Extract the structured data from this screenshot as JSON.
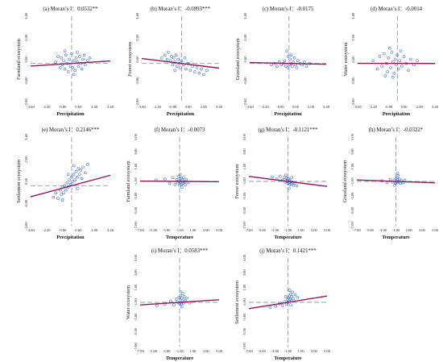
{
  "chart_data": [
    {
      "type": "scatter",
      "title": "(a) Moran’s I：0.0532**",
      "xlabel": "Precipitation",
      "ylabel": "Farmland ecosystem",
      "xlim": [
        -3.6,
        3.4
      ],
      "ylim": [
        -2.8,
        3.4
      ],
      "xticks": [
        "-3.60",
        "-2.20",
        "-0.80",
        "0.60",
        "2.00",
        "3.40"
      ],
      "yticks": [
        "3.40",
        "2.00",
        "0.60",
        "-0.80",
        "-2.80"
      ],
      "slope": 0.0532,
      "points": [
        [
          -1.2,
          0.5
        ],
        [
          -1.0,
          -0.3
        ],
        [
          -0.9,
          0.4
        ],
        [
          -0.8,
          -0.1
        ],
        [
          -0.7,
          0.2
        ],
        [
          -0.6,
          -0.4
        ],
        [
          -0.5,
          0.6
        ],
        [
          -0.4,
          0.0
        ],
        [
          -0.3,
          -0.6
        ],
        [
          -0.2,
          0.3
        ],
        [
          -0.1,
          -0.2
        ],
        [
          0.0,
          0.7
        ],
        [
          0.1,
          -0.3
        ],
        [
          0.2,
          0.2
        ],
        [
          0.3,
          -0.5
        ],
        [
          0.4,
          0.4
        ],
        [
          0.5,
          0.1
        ],
        [
          0.6,
          -0.2
        ],
        [
          0.7,
          0.5
        ],
        [
          0.8,
          0.0
        ],
        [
          0.9,
          -0.4
        ],
        [
          1.0,
          0.3
        ],
        [
          1.1,
          0.6
        ],
        [
          1.2,
          -0.1
        ],
        [
          1.4,
          0.2
        ],
        [
          -0.6,
          0.9
        ],
        [
          0.2,
          -0.8
        ],
        [
          0.5,
          0.8
        ],
        [
          -1.4,
          0.1
        ],
        [
          1.6,
          0.4
        ]
      ]
    },
    {
      "type": "scatter",
      "title": "(b) Moran’s I：-0.0993***",
      "xlabel": "Precipitation",
      "ylabel": "Forest ecosystem",
      "xlim": [
        -3.6,
        3.4
      ],
      "ylim": [
        -2.8,
        3.4
      ],
      "xticks": [
        "-3.60",
        "-2.20",
        "-0.80",
        "0.60",
        "2.00",
        "3.40"
      ],
      "yticks": [
        "3.40",
        "2.00",
        "0.60",
        "-0.80",
        "-2.80"
      ],
      "slope": -0.0993,
      "points": [
        [
          -1.5,
          0.6
        ],
        [
          -1.3,
          0.3
        ],
        [
          -1.2,
          0.8
        ],
        [
          -1.0,
          0.2
        ],
        [
          -0.9,
          0.5
        ],
        [
          -0.8,
          -0.1
        ],
        [
          -0.7,
          0.4
        ],
        [
          -0.6,
          0.1
        ],
        [
          -0.5,
          0.6
        ],
        [
          -0.4,
          -0.2
        ],
        [
          -0.3,
          0.3
        ],
        [
          -0.2,
          0.0
        ],
        [
          -0.1,
          -0.3
        ],
        [
          0.0,
          0.2
        ],
        [
          0.2,
          -0.1
        ],
        [
          0.4,
          -0.4
        ],
        [
          0.6,
          0.0
        ],
        [
          0.8,
          -0.5
        ],
        [
          1.0,
          -0.2
        ],
        [
          1.2,
          -0.6
        ],
        [
          1.4,
          -0.3
        ],
        [
          1.6,
          -0.7
        ],
        [
          1.8,
          -0.4
        ],
        [
          2.0,
          -0.8
        ],
        [
          -0.6,
          -0.5
        ],
        [
          0.3,
          0.4
        ],
        [
          -1.8,
          0.4
        ],
        [
          2.3,
          -0.5
        ]
      ]
    },
    {
      "type": "scatter",
      "title": "(c) Moran’s I：-0.0175",
      "xlabel": "Precipitation",
      "ylabel": "Grassland ecosystem",
      "xlim": [
        -3.6,
        3.4
      ],
      "ylim": [
        -2.8,
        3.4
      ],
      "xticks": [
        "-3.60",
        "-2.20",
        "-0.80",
        "0.60",
        "2.00",
        "3.40"
      ],
      "yticks": [
        "3.40",
        "2.00",
        "0.60",
        "-0.80",
        "-2.80"
      ],
      "slope": -0.0175,
      "points": [
        [
          -1.6,
          -0.1
        ],
        [
          -1.3,
          0.0
        ],
        [
          -1.1,
          -0.2
        ],
        [
          -0.9,
          0.1
        ],
        [
          -0.7,
          -0.1
        ],
        [
          -0.5,
          0.0
        ],
        [
          -0.4,
          0.2
        ],
        [
          -0.3,
          -0.2
        ],
        [
          -0.2,
          0.9
        ],
        [
          -0.1,
          0.5
        ],
        [
          0.0,
          -0.1
        ],
        [
          0.1,
          0.3
        ],
        [
          0.2,
          0.0
        ],
        [
          0.3,
          -0.2
        ],
        [
          0.4,
          0.1
        ],
        [
          0.6,
          -0.1
        ],
        [
          0.8,
          0.2
        ],
        [
          1.0,
          0.0
        ],
        [
          1.2,
          -0.1
        ],
        [
          1.4,
          0.1
        ],
        [
          1.6,
          -0.2
        ],
        [
          1.9,
          0.0
        ],
        [
          0.2,
          0.6
        ],
        [
          0.5,
          0.4
        ],
        [
          -0.1,
          -0.3
        ],
        [
          0.7,
          -0.3
        ]
      ]
    },
    {
      "type": "scatter",
      "title": "(d) Moran’s I：-0.0014",
      "xlabel": "Precipitation",
      "ylabel": "Water ecosystem",
      "xlim": [
        -3.6,
        3.4
      ],
      "ylim": [
        -2.8,
        3.4
      ],
      "xticks": [
        "-3.60",
        "-2.20",
        "-0.80",
        "0.60",
        "2.00",
        "3.40"
      ],
      "yticks": [
        "3.40",
        "2.00",
        "0.60",
        "-0.80",
        "-2.80"
      ],
      "slope": -0.0014,
      "points": [
        [
          -2.2,
          0.2
        ],
        [
          -1.8,
          -0.4
        ],
        [
          -1.6,
          0.5
        ],
        [
          -1.4,
          -0.2
        ],
        [
          -1.2,
          0.7
        ],
        [
          -1.0,
          0.0
        ],
        [
          -0.9,
          -0.6
        ],
        [
          -0.8,
          0.4
        ],
        [
          -0.6,
          -0.3
        ],
        [
          -0.5,
          0.8
        ],
        [
          -0.4,
          0.1
        ],
        [
          -0.3,
          -0.7
        ],
        [
          -0.2,
          0.3
        ],
        [
          -0.1,
          -0.1
        ],
        [
          0.0,
          0.6
        ],
        [
          0.1,
          -0.4
        ],
        [
          0.2,
          0.2
        ],
        [
          0.4,
          -0.2
        ],
        [
          0.6,
          0.5
        ],
        [
          0.8,
          0.0
        ],
        [
          1.0,
          -0.5
        ],
        [
          1.2,
          0.3
        ],
        [
          1.5,
          -0.1
        ],
        [
          1.8,
          0.2
        ],
        [
          -0.7,
          1.1
        ],
        [
          -1.1,
          -0.9
        ],
        [
          0.3,
          0.9
        ],
        [
          -0.4,
          -1.0
        ]
      ]
    },
    {
      "type": "scatter",
      "title": "(e) Moran’s I：0.2146***",
      "xlabel": "Precipitation",
      "ylabel": "Settlement ecosystem",
      "xlim": [
        -3.6,
        3.4
      ],
      "ylim": [
        -2.8,
        3.4
      ],
      "xticks": [
        "-3.60",
        "-2.20",
        "-0.80",
        "0.60",
        "2.00",
        "3.40"
      ],
      "yticks": [
        "3.40",
        "2.00",
        "0.60",
        "-0.80",
        "-2.80"
      ],
      "slope": 0.2146,
      "points": [
        [
          -1.6,
          -0.8
        ],
        [
          -1.4,
          -0.5
        ],
        [
          -1.2,
          -0.9
        ],
        [
          -1.0,
          -0.3
        ],
        [
          -0.9,
          -0.6
        ],
        [
          -0.8,
          -0.1
        ],
        [
          -0.7,
          -0.5
        ],
        [
          -0.6,
          0.0
        ],
        [
          -0.5,
          -0.3
        ],
        [
          -0.4,
          0.2
        ],
        [
          -0.3,
          -0.1
        ],
        [
          -0.2,
          0.4
        ],
        [
          -0.1,
          0.1
        ],
        [
          0.0,
          0.6
        ],
        [
          0.1,
          0.3
        ],
        [
          0.2,
          0.8
        ],
        [
          0.3,
          0.4
        ],
        [
          0.4,
          1.0
        ],
        [
          0.5,
          0.6
        ],
        [
          0.6,
          1.2
        ],
        [
          0.7,
          0.8
        ],
        [
          0.8,
          1.1
        ],
        [
          0.9,
          0.5
        ],
        [
          1.0,
          1.3
        ],
        [
          1.2,
          0.9
        ],
        [
          1.4,
          1.5
        ],
        [
          -0.3,
          0.8
        ],
        [
          0.5,
          -0.2
        ],
        [
          -0.8,
          -1.0
        ],
        [
          0.2,
          1.4
        ]
      ]
    },
    {
      "type": "scatter",
      "title": "(f) Moran’s I：-0.0073",
      "xlabel": "Temperature",
      "ylabel": "Farmland ecosystem",
      "xlim": [
        -7.0,
        7.0
      ],
      "ylim": [
        -7.0,
        7.0
      ],
      "xticks": [
        "-7.00",
        "-5.00",
        "-3.00",
        "-1.00",
        "1.00",
        "3.00",
        "5.00"
      ],
      "yticks": [
        "5.00",
        "3.00",
        "1.00",
        "-1.00",
        "-3.00",
        "-5.00",
        "-7.00"
      ],
      "slope": -0.0073,
      "points": [
        [
          -2.6,
          0.4
        ],
        [
          -1.8,
          -0.3
        ],
        [
          -1.2,
          0.6
        ],
        [
          -0.8,
          -0.5
        ],
        [
          -0.5,
          0.3
        ],
        [
          -0.3,
          -0.2
        ],
        [
          -0.2,
          0.8
        ],
        [
          -0.1,
          0.0
        ],
        [
          0.0,
          -0.6
        ],
        [
          0.1,
          0.4
        ],
        [
          0.2,
          -0.1
        ],
        [
          0.3,
          0.5
        ],
        [
          0.4,
          -0.4
        ],
        [
          0.5,
          0.2
        ],
        [
          0.6,
          -0.3
        ],
        [
          0.7,
          0.6
        ],
        [
          0.8,
          0.0
        ],
        [
          1.0,
          -0.5
        ],
        [
          1.2,
          0.3
        ],
        [
          1.5,
          -0.2
        ],
        [
          -4.2,
          0.2
        ],
        [
          0.1,
          1.1
        ],
        [
          0.4,
          -0.9
        ]
      ]
    },
    {
      "type": "scatter",
      "title": "(g) Moran’s I：-0.1121***",
      "xlabel": "Temperature",
      "ylabel": "Forest ecosystem",
      "xlim": [
        -7.0,
        7.0
      ],
      "ylim": [
        -7.0,
        7.0
      ],
      "xticks": [
        "-7.00",
        "-5.00",
        "-3.00",
        "-1.00",
        "1.00",
        "3.00",
        "5.00"
      ],
      "yticks": [
        "5.00",
        "3.00",
        "1.00",
        "-1.00",
        "-3.00",
        "-5.00",
        "-7.00"
      ],
      "slope": -0.1121,
      "points": [
        [
          -2.8,
          0.7
        ],
        [
          -2.0,
          0.4
        ],
        [
          -1.4,
          0.8
        ],
        [
          -1.0,
          0.2
        ],
        [
          -0.7,
          0.6
        ],
        [
          -0.5,
          -0.1
        ],
        [
          -0.3,
          0.5
        ],
        [
          -0.2,
          0.0
        ],
        [
          -0.1,
          0.3
        ],
        [
          0.0,
          -0.3
        ],
        [
          0.1,
          0.4
        ],
        [
          0.2,
          -0.2
        ],
        [
          0.3,
          0.2
        ],
        [
          0.4,
          -0.5
        ],
        [
          0.5,
          0.0
        ],
        [
          0.6,
          -0.4
        ],
        [
          0.8,
          -0.1
        ],
        [
          1.0,
          -0.6
        ],
        [
          1.2,
          -0.3
        ],
        [
          1.6,
          -0.7
        ],
        [
          0.2,
          -1.1
        ],
        [
          -0.4,
          1.0
        ],
        [
          0.7,
          0.6
        ]
      ]
    },
    {
      "type": "scatter",
      "title": "(h) Moran’s I：-0.0322*",
      "xlabel": "Temperature",
      "ylabel": "Grassland ecosystem",
      "xlim": [
        -7.0,
        7.0
      ],
      "ylim": [
        -7.0,
        7.0
      ],
      "xticks": [
        "-7.00",
        "-5.00",
        "-3.00",
        "-1.00",
        "1.00",
        "3.00",
        "5.00"
      ],
      "yticks": [
        "5.00",
        "3.00",
        "1.00",
        "-1.00",
        "-3.00",
        "-5.00",
        "-7.00"
      ],
      "slope": -0.0322,
      "points": [
        [
          -2.5,
          0.1
        ],
        [
          -1.6,
          -0.2
        ],
        [
          -1.0,
          0.3
        ],
        [
          -0.6,
          -0.1
        ],
        [
          -0.3,
          0.2
        ],
        [
          -0.1,
          -0.3
        ],
        [
          0.0,
          0.5
        ],
        [
          0.1,
          0.0
        ],
        [
          0.2,
          -0.2
        ],
        [
          0.3,
          0.3
        ],
        [
          0.4,
          0.9
        ],
        [
          0.5,
          -0.1
        ],
        [
          0.6,
          0.4
        ],
        [
          0.8,
          -0.3
        ],
        [
          1.0,
          0.1
        ],
        [
          1.3,
          -0.2
        ],
        [
          0.3,
          1.3
        ],
        [
          -0.2,
          -0.6
        ],
        [
          1.6,
          0.2
        ]
      ]
    },
    {
      "type": "scatter",
      "title": "(i) Moran’s I：0.0583***",
      "xlabel": "Temperature",
      "ylabel": "Water ecosystem",
      "xlim": [
        -7.0,
        7.0
      ],
      "ylim": [
        -7.0,
        7.0
      ],
      "xticks": [
        "-7.00",
        "-5.00",
        "-3.00",
        "-1.00",
        "1.00",
        "3.00",
        "5.00"
      ],
      "yticks": [
        "5.00",
        "3.00",
        "1.00",
        "-1.00",
        "-3.00",
        "-5.00",
        "-7.00"
      ],
      "slope": 0.0583,
      "points": [
        [
          -4.0,
          -0.5
        ],
        [
          -2.6,
          -0.3
        ],
        [
          -1.6,
          0.2
        ],
        [
          -1.0,
          -0.4
        ],
        [
          -0.6,
          0.5
        ],
        [
          -0.3,
          0.0
        ],
        [
          -0.1,
          0.8
        ],
        [
          0.0,
          -0.2
        ],
        [
          0.1,
          0.4
        ],
        [
          0.2,
          1.1
        ],
        [
          0.3,
          -0.3
        ],
        [
          0.4,
          0.6
        ],
        [
          0.5,
          0.1
        ],
        [
          0.6,
          1.4
        ],
        [
          0.7,
          -0.1
        ],
        [
          0.8,
          0.9
        ],
        [
          1.0,
          0.3
        ],
        [
          1.3,
          0.7
        ],
        [
          1.8,
          -0.1
        ],
        [
          0.2,
          1.7
        ],
        [
          0.4,
          -0.7
        ]
      ]
    },
    {
      "type": "scatter",
      "title": "(j) Moran’s I：0.1421***",
      "xlabel": "Temperature",
      "ylabel": "Settlement ecosystem",
      "xlim": [
        -7.0,
        7.0
      ],
      "ylim": [
        -7.0,
        7.0
      ],
      "xticks": [
        "-7.00",
        "-5.00",
        "-3.00",
        "-1.00",
        "1.00",
        "3.00",
        "5.00"
      ],
      "yticks": [
        "5.00",
        "3.00",
        "1.00",
        "-1.00",
        "-3.00",
        "-5.00",
        "-7.00"
      ],
      "slope": 0.1421,
      "points": [
        [
          -3.2,
          -0.8
        ],
        [
          -2.2,
          -0.6
        ],
        [
          -1.5,
          -0.2
        ],
        [
          -1.0,
          -0.5
        ],
        [
          -0.6,
          0.1
        ],
        [
          -0.3,
          -0.3
        ],
        [
          -0.1,
          0.4
        ],
        [
          0.0,
          0.0
        ],
        [
          0.1,
          0.7
        ],
        [
          0.2,
          0.2
        ],
        [
          0.3,
          1.0
        ],
        [
          0.4,
          0.5
        ],
        [
          0.5,
          1.3
        ],
        [
          0.6,
          0.3
        ],
        [
          0.7,
          0.9
        ],
        [
          0.8,
          1.6
        ],
        [
          1.0,
          0.6
        ],
        [
          1.3,
          1.2
        ],
        [
          1.7,
          0.8
        ],
        [
          0.3,
          1.9
        ],
        [
          0.5,
          -0.4
        ],
        [
          -0.4,
          0.9
        ]
      ]
    }
  ]
}
